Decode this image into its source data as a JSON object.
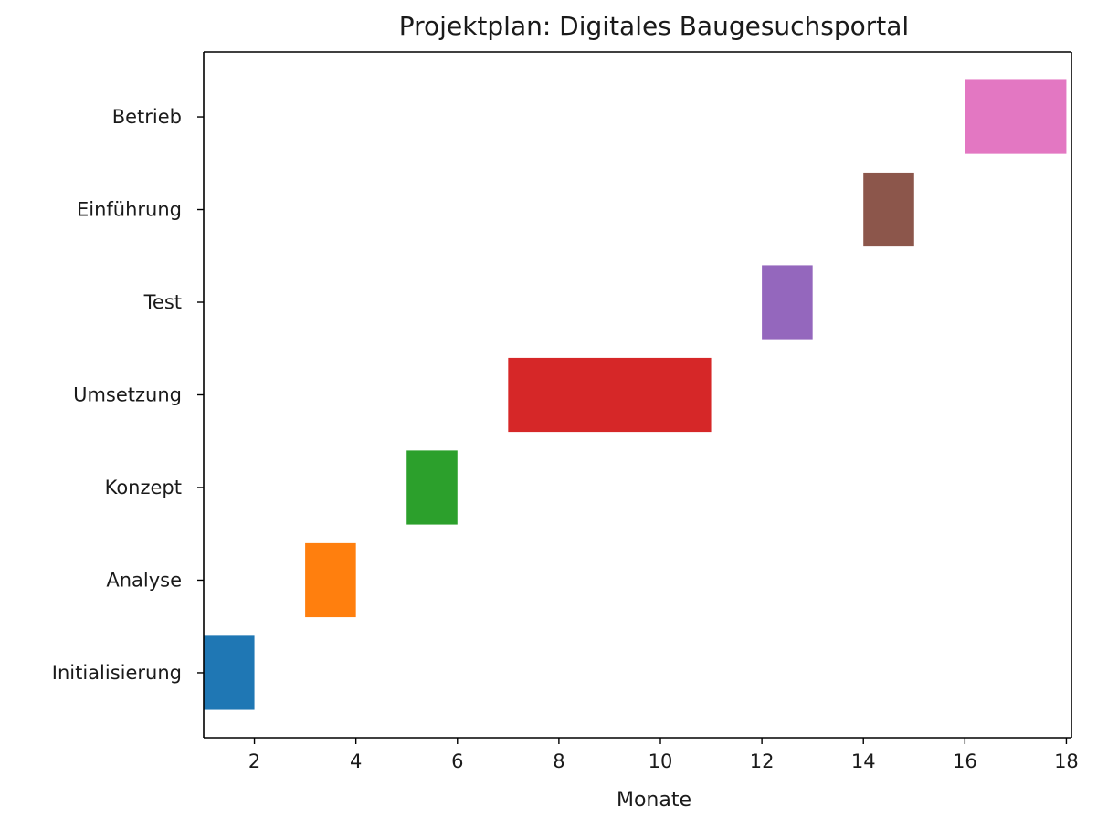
{
  "chart_data": {
    "type": "bar",
    "orientation": "horizontal",
    "title": "Projektplan: Digitales Baugesuchsportal",
    "xlabel": "Monate",
    "ylabel": "",
    "xlim": [
      1,
      18.1
    ],
    "xticks": [
      2,
      4,
      6,
      8,
      10,
      12,
      14,
      16,
      18
    ],
    "grid": false,
    "categories": [
      "Initialisierung",
      "Analyse",
      "Konzept",
      "Umsetzung",
      "Test",
      "Einführung",
      "Betrieb"
    ],
    "tasks": [
      {
        "name": "Initialisierung",
        "start": 1,
        "end": 2,
        "color": "#1f77b4"
      },
      {
        "name": "Analyse",
        "start": 3,
        "end": 4,
        "color": "#ff7f0e"
      },
      {
        "name": "Konzept",
        "start": 5,
        "end": 6,
        "color": "#2ca02c"
      },
      {
        "name": "Umsetzung",
        "start": 7,
        "end": 11,
        "color": "#d62728"
      },
      {
        "name": "Test",
        "start": 12,
        "end": 13,
        "color": "#9467bd"
      },
      {
        "name": "Einführung",
        "start": 14,
        "end": 15,
        "color": "#8c564b"
      },
      {
        "name": "Betrieb",
        "start": 16,
        "end": 18,
        "color": "#e377c2"
      }
    ]
  }
}
